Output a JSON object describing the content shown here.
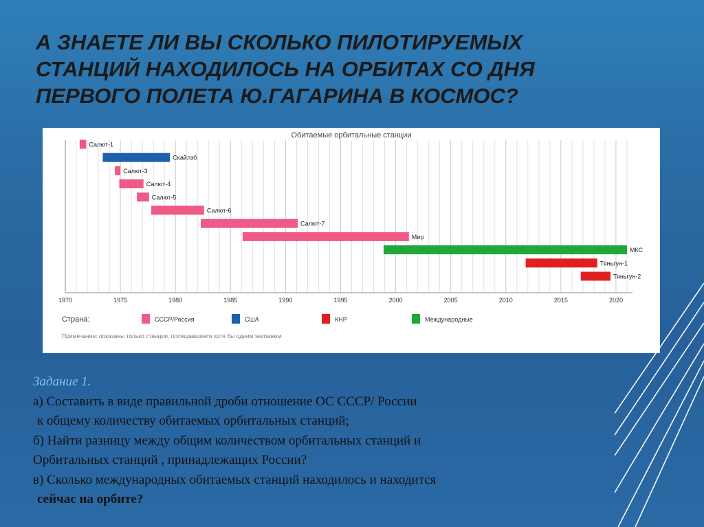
{
  "slide": {
    "title_lines": [
      "А ЗНАЕТЕ ЛИ ВЫ СКОЛЬКО  ПИЛОТИРУЕМЫХ",
      "СТАНЦИЙ НАХОДИЛОСЬ НА ОРБИТАХ СО ДНЯ",
      "ПЕРВОГО  ПОЛЕТА  Ю.ГАГАРИНА  В КОСМОС?"
    ]
  },
  "chart_data": {
    "type": "timeline",
    "title": "Обитаемые орбитальные станции",
    "xlim": [
      1970,
      2021.5
    ],
    "x_ticks": [
      1970,
      1975,
      1980,
      1985,
      1990,
      1995,
      2000,
      2005,
      2010,
      2015,
      2020
    ],
    "bars": [
      {
        "label": "Салют-1",
        "start": 1971.3,
        "end": 1971.9,
        "country": "ussr_russia"
      },
      {
        "label": "Скайлэб",
        "start": 1973.4,
        "end": 1979.5,
        "country": "usa"
      },
      {
        "label": "Салют-3",
        "start": 1974.5,
        "end": 1975.0,
        "country": "ussr_russia"
      },
      {
        "label": "Салют-4",
        "start": 1974.9,
        "end": 1977.1,
        "country": "ussr_russia"
      },
      {
        "label": "Салют-5",
        "start": 1976.5,
        "end": 1977.6,
        "country": "ussr_russia"
      },
      {
        "label": "Салют-6",
        "start": 1977.8,
        "end": 1982.6,
        "country": "ussr_russia"
      },
      {
        "label": "Салют-7",
        "start": 1982.3,
        "end": 1991.1,
        "country": "ussr_russia"
      },
      {
        "label": "Мир",
        "start": 1986.1,
        "end": 2001.2,
        "country": "ussr_russia"
      },
      {
        "label": "МКС",
        "start": 1998.9,
        "end": 2021.0,
        "country": "international"
      },
      {
        "label": "Тяньгун-1",
        "start": 2011.8,
        "end": 2018.3,
        "country": "china"
      },
      {
        "label": "Тяньгун-2",
        "start": 2016.8,
        "end": 2019.5,
        "country": "china"
      }
    ],
    "legend": {
      "title": "Страна:",
      "entries": [
        {
          "key": "ussr_russia",
          "label": "СССР/Россия",
          "color": "#ef5a86"
        },
        {
          "key": "usa",
          "label": "США",
          "color": "#1f5fb0"
        },
        {
          "key": "china",
          "label": "КНР",
          "color": "#e02020"
        },
        {
          "key": "international",
          "label": "Международные",
          "color": "#22a83a"
        }
      ]
    },
    "note": "Примечание: показаны только станции, посещавшиеся хотя бы одним экипажем.",
    "grid": true
  },
  "task": {
    "heading": "Задание 1.",
    "line_a1": "а) Составить в виде правильной дроби  отношение  ОС  СССР/ России",
    "line_a2": "к  общему количеству  обитаемых орбитальных станций;",
    "line_b1": "б) Найти разницу между общим количеством орбитальных станций и",
    "line_b2": "Орбитальных станций , принадлежащих России?",
    "line_c1": "в) Сколько международных обитаемых станций находилось и находится",
    "line_c2": "сейчас на орбите?"
  }
}
